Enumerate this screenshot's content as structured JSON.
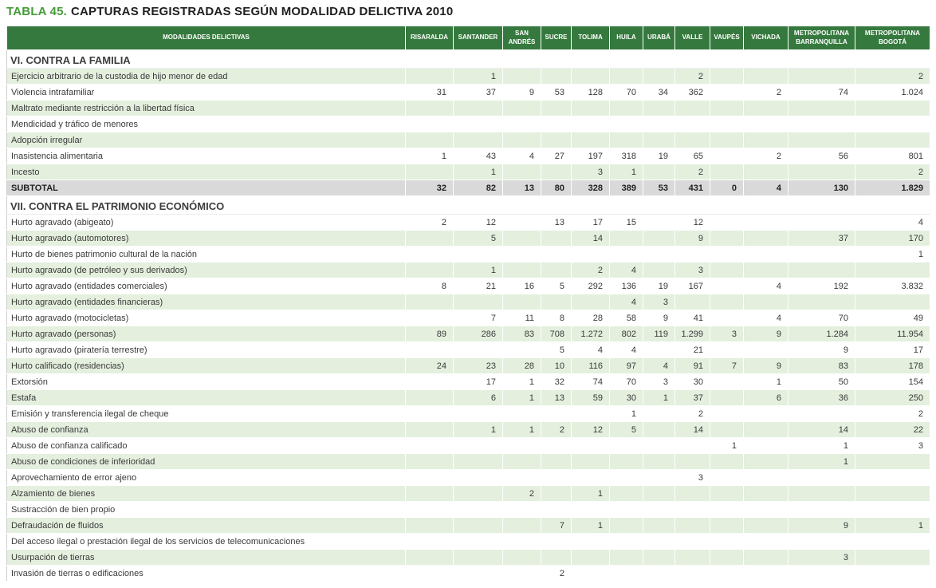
{
  "title": {
    "label": "TABLA 45.",
    "text": "CAPTURAS REGISTRADAS SEGÚN MODALIDAD DELICTIVA 2010"
  },
  "colors": {
    "header_green": "#36793E",
    "row_light_green": "#E4EFDE",
    "subtotal_gray": "#D9D9D9",
    "title_green": "#459A38"
  },
  "table": {
    "first_column_header": "MODALIDADES DELICTIVAS",
    "columns": [
      "RISARALDA",
      "SANTANDER",
      "SAN ANDRÉS",
      "SUCRE",
      "TOLIMA",
      "HUILA",
      "URABÁ",
      "VALLE",
      "VAUPÉS",
      "VICHADA",
      "METROPOLITANA BARRANQUILLA",
      "METROPOLITANA BOGOTÁ"
    ],
    "sections": [
      {
        "header": "VI. CONTRA LA FAMILIA",
        "rows": [
          {
            "label": "Ejercicio arbitrario de la custodia de hijo menor de edad",
            "values": [
              "",
              "1",
              "",
              "",
              "",
              "",
              "",
              "2",
              "",
              "",
              "",
              "2"
            ]
          },
          {
            "label": "Violencia intrafamiliar",
            "values": [
              "31",
              "37",
              "9",
              "53",
              "128",
              "70",
              "34",
              "362",
              "",
              "2",
              "74",
              "1.024"
            ]
          },
          {
            "label": "Maltrato mediante restricción a la libertad física",
            "values": [
              "",
              "",
              "",
              "",
              "",
              "",
              "",
              "",
              "",
              "",
              "",
              ""
            ]
          },
          {
            "label": "Mendicidad y tráfico de menores",
            "values": [
              "",
              "",
              "",
              "",
              "",
              "",
              "",
              "",
              "",
              "",
              "",
              ""
            ]
          },
          {
            "label": "Adopción irregular",
            "values": [
              "",
              "",
              "",
              "",
              "",
              "",
              "",
              "",
              "",
              "",
              "",
              ""
            ]
          },
          {
            "label": "Inasistencia alimentaria",
            "values": [
              "1",
              "43",
              "4",
              "27",
              "197",
              "318",
              "19",
              "65",
              "",
              "2",
              "56",
              "801"
            ]
          },
          {
            "label": "Incesto",
            "values": [
              "",
              "1",
              "",
              "",
              "3",
              "1",
              "",
              "2",
              "",
              "",
              "",
              "2"
            ]
          },
          {
            "label": "SUBTOTAL",
            "subtotal": true,
            "values": [
              "32",
              "82",
              "13",
              "80",
              "328",
              "389",
              "53",
              "431",
              "0",
              "4",
              "130",
              "1.829"
            ]
          }
        ]
      },
      {
        "header": "VII. CONTRA EL PATRIMONIO ECONÓMICO",
        "rows": [
          {
            "label": "Hurto agravado (abigeato)",
            "values": [
              "2",
              "12",
              "",
              "13",
              "17",
              "15",
              "",
              "12",
              "",
              "",
              "",
              "4"
            ]
          },
          {
            "label": "Hurto agravado (automotores)",
            "values": [
              "",
              "5",
              "",
              "",
              "14",
              "",
              "",
              "9",
              "",
              "",
              "37",
              "170"
            ]
          },
          {
            "label": "Hurto de bienes patrimonio cultural de la nación",
            "values": [
              "",
              "",
              "",
              "",
              "",
              "",
              "",
              "",
              "",
              "",
              "",
              "1"
            ]
          },
          {
            "label": "Hurto agravado (de petróleo y sus derivados)",
            "values": [
              "",
              "1",
              "",
              "",
              "2",
              "4",
              "",
              "3",
              "",
              "",
              "",
              ""
            ]
          },
          {
            "label": "Hurto agravado (entidades comerciales)",
            "values": [
              "8",
              "21",
              "16",
              "5",
              "292",
              "136",
              "19",
              "167",
              "",
              "4",
              "192",
              "3.832"
            ]
          },
          {
            "label": "Hurto agravado (entidades financieras)",
            "values": [
              "",
              "",
              "",
              "",
              "",
              "4",
              "3",
              "",
              "",
              "",
              "",
              ""
            ]
          },
          {
            "label": "Hurto agravado (motocicletas)",
            "values": [
              "",
              "7",
              "11",
              "8",
              "28",
              "58",
              "9",
              "41",
              "",
              "4",
              "70",
              "49"
            ]
          },
          {
            "label": "Hurto agravado (personas)",
            "values": [
              "89",
              "286",
              "83",
              "708",
              "1.272",
              "802",
              "119",
              "1.299",
              "3",
              "9",
              "1.284",
              "11.954"
            ]
          },
          {
            "label": "Hurto agravado (piratería terrestre)",
            "values": [
              "",
              "",
              "",
              "5",
              "4",
              "4",
              "",
              "21",
              "",
              "",
              "9",
              "17"
            ]
          },
          {
            "label": "Hurto calificado (residencias)",
            "values": [
              "24",
              "23",
              "28",
              "10",
              "116",
              "97",
              "4",
              "91",
              "7",
              "9",
              "83",
              "178"
            ]
          },
          {
            "label": "Extorsión",
            "values": [
              "",
              "17",
              "1",
              "32",
              "74",
              "70",
              "3",
              "30",
              "",
              "1",
              "50",
              "154"
            ]
          },
          {
            "label": "Estafa",
            "values": [
              "",
              "6",
              "1",
              "13",
              "59",
              "30",
              "1",
              "37",
              "",
              "6",
              "36",
              "250"
            ]
          },
          {
            "label": "Emisión y transferencia ilegal de cheque",
            "values": [
              "",
              "",
              "",
              "",
              "",
              "1",
              "",
              "2",
              "",
              "",
              "",
              "2"
            ]
          },
          {
            "label": "Abuso de confianza",
            "values": [
              "",
              "1",
              "1",
              "2",
              "12",
              "5",
              "",
              "14",
              "",
              "",
              "14",
              "22"
            ]
          },
          {
            "label": "Abuso de confianza calificado",
            "values": [
              "",
              "",
              "",
              "",
              "",
              "",
              "",
              "",
              "1",
              "",
              "1",
              "3"
            ]
          },
          {
            "label": "Abuso de condiciones de inferioridad",
            "values": [
              "",
              "",
              "",
              "",
              "",
              "",
              "",
              "",
              "",
              "",
              "1",
              ""
            ]
          },
          {
            "label": "Aprovechamiento de error ajeno",
            "values": [
              "",
              "",
              "",
              "",
              "",
              "",
              "",
              "3",
              "",
              "",
              "",
              ""
            ]
          },
          {
            "label": "Alzamiento de bienes",
            "values": [
              "",
              "",
              "2",
              "",
              "1",
              "",
              "",
              "",
              "",
              "",
              "",
              ""
            ]
          },
          {
            "label": "Sustracción de bien propio",
            "values": [
              "",
              "",
              "",
              "",
              "",
              "",
              "",
              "",
              "",
              "",
              "",
              ""
            ]
          },
          {
            "label": "Defraudación de fluidos",
            "values": [
              "",
              "",
              "",
              "7",
              "1",
              "",
              "",
              "",
              "",
              "",
              "9",
              "1"
            ]
          },
          {
            "label": "Del acceso ilegal o prestación ilegal de los servicios de telecomunicaciones",
            "values": [
              "",
              "",
              "",
              "",
              "",
              "",
              "",
              "",
              "",
              "",
              "",
              ""
            ]
          },
          {
            "label": "Usurpación de tierras",
            "values": [
              "",
              "",
              "",
              "",
              "",
              "",
              "",
              "",
              "",
              "",
              "3",
              ""
            ]
          },
          {
            "label": "Invasión de tierras o edificaciones",
            "values": [
              "",
              "",
              "",
              "2",
              "",
              "",
              "",
              "",
              "",
              "",
              "",
              ""
            ]
          }
        ]
      }
    ]
  }
}
